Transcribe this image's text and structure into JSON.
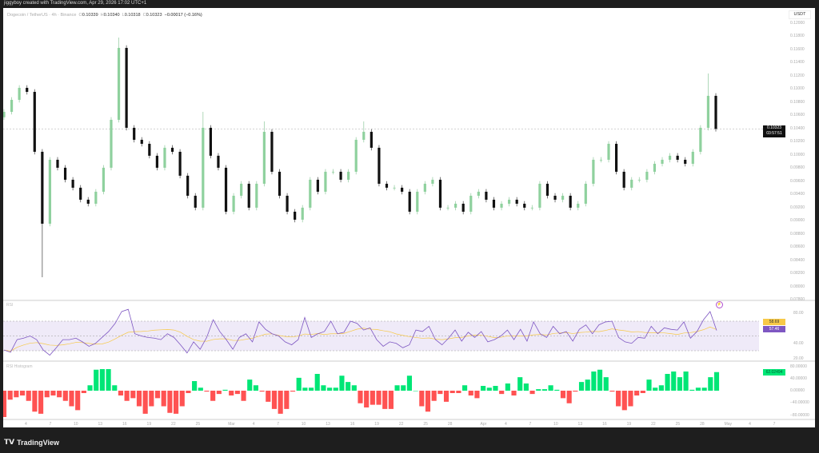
{
  "caption": "jiggyboy created with TradingView.com, Apr 29, 2026 17:02 UTC+1",
  "legend": {
    "symbol": "Dogecoin / TetherUS · 4h · Binance",
    "open_key": "O",
    "open": "0.10339",
    "high_key": "H",
    "high": "0.10340",
    "low_key": "L",
    "low": "0.10318",
    "close_key": "C",
    "close": "0.10323",
    "change": "−0.00017 (−0.16%)"
  },
  "price_axis": {
    "unit": "USDT",
    "labels": [
      "0.12000",
      "0.11800",
      "0.11600",
      "0.11400",
      "0.11200",
      "0.11000",
      "0.10800",
      "0.10600",
      "0.10400",
      "0.10200",
      "0.10000",
      "0.09800",
      "0.09600",
      "0.09400",
      "0.09200",
      "0.09000",
      "0.08800",
      "0.08600",
      "0.08400",
      "0.08200",
      "0.08000",
      "0.07800"
    ],
    "current_price": "0.10323",
    "countdown": "03:57:51"
  },
  "rsi_pane": {
    "title": "RSI",
    "axis_labels": [
      "80.00",
      "40.00",
      "20.00"
    ],
    "ma_value": "58.69",
    "rsi_value": "57.46",
    "band": [
      30,
      70
    ],
    "mid": 50,
    "colors": {
      "rsi": "#7e57c2",
      "ma": "#f7c948",
      "band": "#efeaf8"
    }
  },
  "hist_pane": {
    "title": "RSI Histogram",
    "axis_labels": [
      "80.00000",
      "40.00000",
      "0.00000",
      "−40.00000",
      "−80.00000"
    ],
    "value": "62.02494",
    "colors": {
      "positive": "#00e676",
      "negative": "#ff5252"
    }
  },
  "time_axis": [
    "4",
    "7",
    "10",
    "13",
    "16",
    "19",
    "22",
    "25",
    "Mar",
    "4",
    "7",
    "10",
    "13",
    "16",
    "19",
    "22",
    "25",
    "28",
    "Apr",
    "4",
    "7",
    "10",
    "13",
    "16",
    "19",
    "22",
    "25",
    "28",
    "May",
    "4",
    "7"
  ],
  "footer": {
    "brand": "TradingView",
    "logo_icon": "tradingview-logo-icon"
  },
  "chart_data": {
    "type": "candlestick",
    "series_close": [
      0.10582,
      0.10764,
      0.10946,
      0.10885,
      0.09976,
      0.08885,
      0.09855,
      0.09734,
      0.09552,
      0.09431,
      0.09249,
      0.09188,
      0.0937,
      0.09734,
      0.10461,
      0.11552,
      0.1034,
      0.10158,
      0.10097,
      0.09916,
      0.09734,
      0.10037,
      0.09976,
      0.09613,
      0.09309,
      0.09128,
      0.1034,
      0.09916,
      0.09734,
      0.09067,
      0.09309,
      0.09491,
      0.09128,
      0.09491,
      0.10279,
      0.09673,
      0.09309,
      0.09067,
      0.08946,
      0.09128,
      0.09552,
      0.0937,
      0.09673,
      0.09673,
      0.09552,
      0.09673,
      0.10158,
      0.10279,
      0.10037,
      0.09491,
      0.09431,
      0.09431,
      0.0937,
      0.09067,
      0.0937,
      0.09491,
      0.09552,
      0.09128,
      0.09128,
      0.09188,
      0.09067,
      0.09309,
      0.0937,
      0.09249,
      0.09128,
      0.09188,
      0.09249,
      0.09188,
      0.09128,
      0.09128,
      0.09491,
      0.09309,
      0.09249,
      0.09309,
      0.09128,
      0.09188,
      0.09491,
      0.09855,
      0.09855,
      0.10097,
      0.09673,
      0.09431,
      0.09552,
      0.09552,
      0.09673,
      0.09794,
      0.09855,
      0.09916,
      0.09855,
      0.09794,
      0.09976,
      0.1034,
      0.10825,
      0.10323
    ],
    "notable_wicks": [
      {
        "i": 5,
        "low": 0.08073
      },
      {
        "i": 15,
        "high": 0.11709
      },
      {
        "i": 26,
        "high": 0.10582
      },
      {
        "i": 34,
        "high": 0.10437
      },
      {
        "i": 47,
        "high": 0.10437
      },
      {
        "i": 92,
        "high": 0.11164
      }
    ],
    "ylim": [
      0.077,
      0.121
    ],
    "colors": {
      "up": "#8fd19e",
      "down": "#111111"
    },
    "rsi": [
      31,
      28,
      45,
      47,
      50,
      45,
      31,
      24,
      34,
      45,
      45,
      47,
      42,
      36,
      40,
      48,
      56,
      67,
      83,
      86,
      53,
      50,
      48,
      47,
      45,
      53,
      48,
      38,
      27,
      42,
      32,
      48,
      72,
      56,
      45,
      32,
      48,
      53,
      42,
      69,
      59,
      53,
      50,
      42,
      38,
      45,
      75,
      48,
      53,
      56,
      70,
      53,
      55,
      70,
      67,
      58,
      61,
      45,
      36,
      42,
      40,
      34,
      38,
      58,
      56,
      63,
      45,
      38,
      47,
      58,
      43,
      55,
      48,
      56,
      42,
      45,
      50,
      58,
      45,
      59,
      43,
      69,
      53,
      48,
      63,
      53,
      56,
      43,
      59,
      65,
      53,
      65,
      69,
      70,
      48,
      42,
      40,
      48,
      47,
      63,
      53,
      61,
      59,
      58,
      69,
      47,
      56,
      72,
      83,
      57.46
    ],
    "rsi_ylim": [
      12,
      95
    ],
    "histogram": [
      -88,
      -30,
      -22,
      -16,
      -34,
      -70,
      -77,
      -22,
      -16,
      -22,
      -34,
      -52,
      -65,
      -8,
      18,
      70,
      72,
      72,
      18,
      -16,
      -34,
      -25,
      -52,
      -77,
      -52,
      -25,
      -52,
      -74,
      -77,
      -52,
      -8,
      32,
      10,
      -3,
      -34,
      -11,
      3,
      -16,
      -11,
      -34,
      37,
      18,
      -3,
      -37,
      -61,
      -77,
      -61,
      -3,
      43,
      10,
      10,
      56,
      18,
      10,
      10,
      50,
      29,
      18,
      -42,
      -56,
      -47,
      -47,
      -61,
      -61,
      18,
      18,
      50,
      0,
      -52,
      -70,
      -34,
      -11,
      -37,
      -8,
      -8,
      18,
      -16,
      -25,
      16,
      10,
      16,
      -11,
      24,
      -16,
      45,
      24,
      -11,
      5,
      5,
      18,
      3,
      -25,
      -42,
      -3,
      29,
      37,
      64,
      70,
      45,
      -3,
      -52,
      -65,
      -52,
      -16,
      -8,
      37,
      10,
      18,
      56,
      64,
      45,
      64,
      3,
      10,
      10,
      45,
      62.02494
    ]
  }
}
